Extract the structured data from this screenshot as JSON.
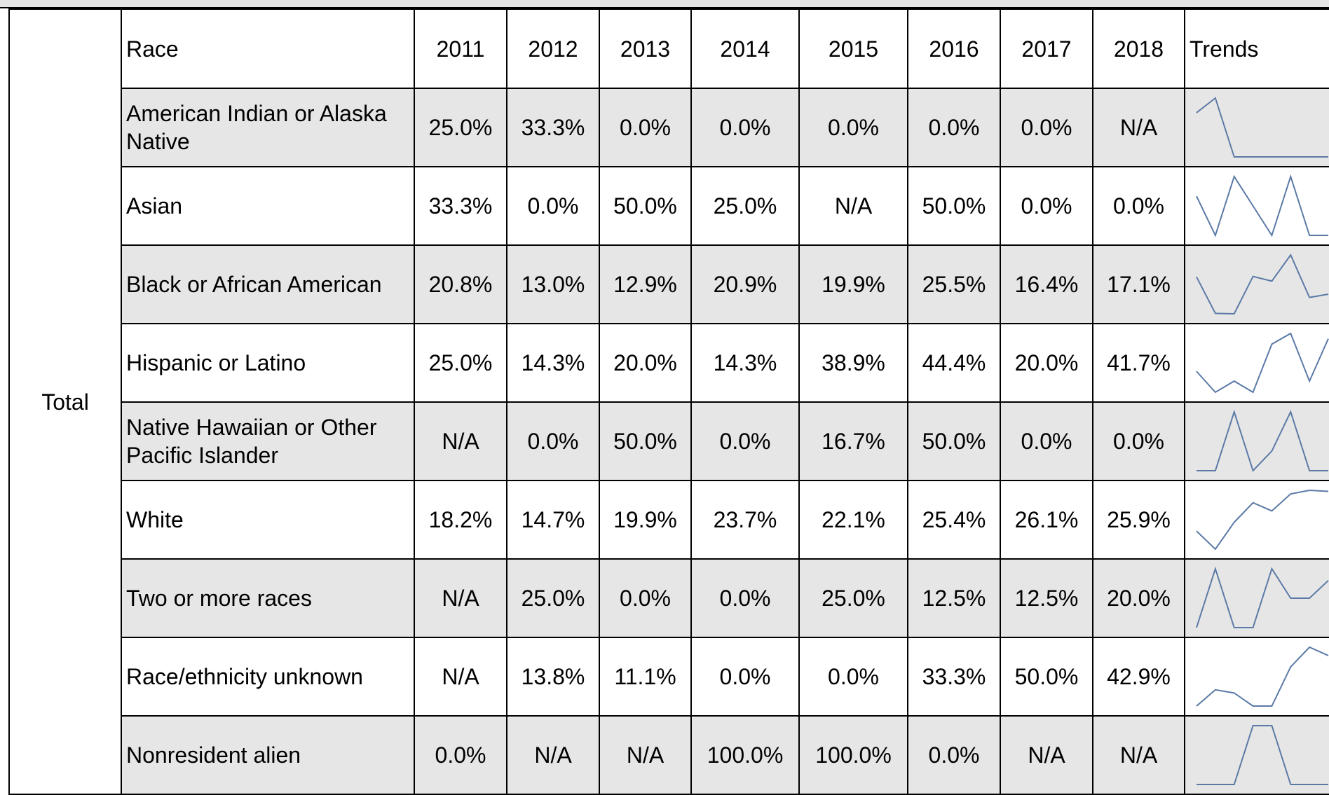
{
  "table": {
    "group": "Total",
    "columns": [
      "Race",
      "2011",
      "2012",
      "2013",
      "2014",
      "2015",
      "2016",
      "2017",
      "2018",
      "Trends"
    ],
    "rows": [
      {
        "race": "American Indian or Alaska Native",
        "values": [
          "25.0%",
          "33.3%",
          "0.0%",
          "0.0%",
          "0.0%",
          "0.0%",
          "0.0%",
          "N/A"
        ]
      },
      {
        "race": "Asian",
        "values": [
          "33.3%",
          "0.0%",
          "50.0%",
          "25.0%",
          "N/A",
          "50.0%",
          "0.0%",
          "0.0%"
        ]
      },
      {
        "race": "Black or African American",
        "values": [
          "20.8%",
          "13.0%",
          "12.9%",
          "20.9%",
          "19.9%",
          "25.5%",
          "16.4%",
          "17.1%"
        ]
      },
      {
        "race": "Hispanic or Latino",
        "values": [
          "25.0%",
          "14.3%",
          "20.0%",
          "14.3%",
          "38.9%",
          "44.4%",
          "20.0%",
          "41.7%"
        ]
      },
      {
        "race": "Native Hawaiian or Other Pacific Islander",
        "values": [
          "N/A",
          "0.0%",
          "50.0%",
          "0.0%",
          "16.7%",
          "50.0%",
          "0.0%",
          "0.0%"
        ]
      },
      {
        "race": "White",
        "values": [
          "18.2%",
          "14.7%",
          "19.9%",
          "23.7%",
          "22.1%",
          "25.4%",
          "26.1%",
          "25.9%"
        ]
      },
      {
        "race": "Two or more races",
        "values": [
          "N/A",
          "25.0%",
          "0.0%",
          "0.0%",
          "25.0%",
          "12.5%",
          "12.5%",
          "20.0%"
        ]
      },
      {
        "race": "Race/ethnicity unknown",
        "values": [
          "N/A",
          "13.8%",
          "11.1%",
          "0.0%",
          "0.0%",
          "33.3%",
          "50.0%",
          "42.9%"
        ]
      },
      {
        "race": "Nonresident alien",
        "values": [
          "0.0%",
          "N/A",
          "N/A",
          "100.0%",
          "100.0%",
          "0.0%",
          "N/A",
          "N/A"
        ]
      }
    ]
  }
}
